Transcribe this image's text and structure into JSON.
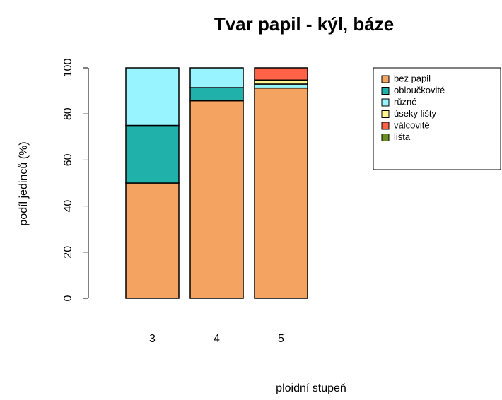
{
  "chart_data": {
    "type": "stacked_bar",
    "title": "Tvar papil - kýl, báze",
    "x_label": "ploidní stupeň",
    "y_label": "podíl jedinců (%)",
    "categories": [
      "3",
      "4",
      "5"
    ],
    "series": [
      {
        "name": "bez papil",
        "color": "#f4a460",
        "values": [
          50,
          85.7,
          91.2
        ]
      },
      {
        "name": "obloučkovité",
        "color": "#20b2aa",
        "values": [
          25,
          5.7,
          0
        ]
      },
      {
        "name": "různé",
        "color": "#98f5ff",
        "values": [
          25,
          8.6,
          1.75
        ]
      },
      {
        "name": "úseky lišty",
        "color": "#fff68f",
        "values": [
          0,
          0,
          1.75
        ]
      },
      {
        "name": "válcovité",
        "color": "#ff6347",
        "values": [
          0,
          0,
          5.3
        ]
      },
      {
        "name": "lišta",
        "color": "#6b8e23",
        "values": [
          0,
          0,
          0
        ]
      }
    ],
    "ylim": [
      0,
      100
    ],
    "yticks": [
      0,
      20,
      40,
      60,
      80,
      100
    ],
    "legend": "top-right"
  }
}
